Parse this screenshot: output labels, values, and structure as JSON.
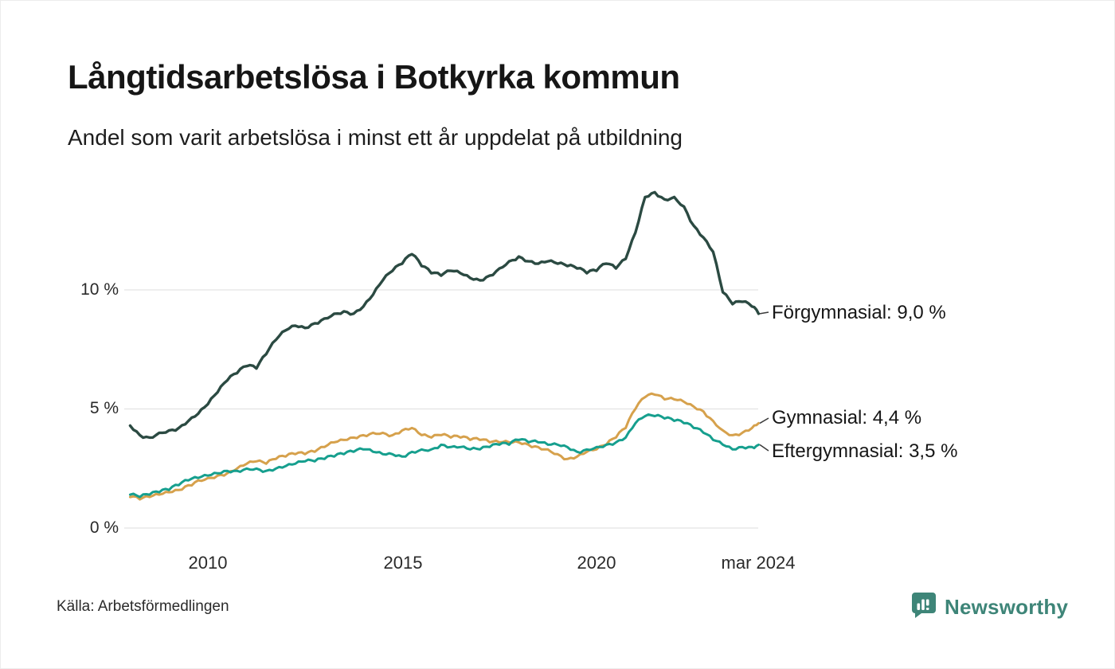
{
  "page": {
    "title": "Långtidsarbetslösa i Botkyrka kommun",
    "subtitle": "Andel som varit arbetslösa i minst ett år uppdelat på utbildning",
    "source": "Källa: Arbetsförmedlingen",
    "brand": {
      "name": "Newsworthy",
      "color": "#3E8578",
      "icon": "bar-chart-logo-icon"
    }
  },
  "chart_data": {
    "type": "line",
    "title": "Långtidsarbetslösa i Botkyrka kommun",
    "subtitle": "Andel som varit arbetslösa i minst ett år uppdelat på utbildning",
    "grid": "horizontal",
    "legend": "end-labels",
    "x_range": [
      2008.0,
      2024.2
    ],
    "y_range": [
      0,
      14.6
    ],
    "y_unit": "%",
    "y_ticks": [
      {
        "value": 10,
        "label": "10 %"
      },
      {
        "value": 5,
        "label": "5 %"
      },
      {
        "value": 0,
        "label": "0 %"
      }
    ],
    "x_ticks": [
      {
        "value": 2010,
        "label": "2010"
      },
      {
        "value": 2015,
        "label": "2015"
      },
      {
        "value": 2020,
        "label": "2020"
      },
      {
        "value": 2024.17,
        "label": "mar 2024"
      }
    ],
    "x": [
      2008.0,
      2008.25,
      2008.5,
      2008.75,
      2009.0,
      2009.25,
      2009.5,
      2009.75,
      2010.0,
      2010.25,
      2010.5,
      2010.75,
      2011.0,
      2011.25,
      2011.5,
      2011.75,
      2012.0,
      2012.25,
      2012.5,
      2012.75,
      2013.0,
      2013.25,
      2013.5,
      2013.75,
      2014.0,
      2014.25,
      2014.5,
      2014.75,
      2015.0,
      2015.25,
      2015.5,
      2015.75,
      2016.0,
      2016.25,
      2016.5,
      2016.75,
      2017.0,
      2017.25,
      2017.5,
      2017.75,
      2018.0,
      2018.25,
      2018.5,
      2018.75,
      2019.0,
      2019.25,
      2019.5,
      2019.75,
      2020.0,
      2020.25,
      2020.5,
      2020.75,
      2021.0,
      2021.25,
      2021.5,
      2021.75,
      2022.0,
      2022.25,
      2022.5,
      2022.75,
      2023.0,
      2023.25,
      2023.5,
      2023.75,
      2024.0,
      2024.17
    ],
    "series": [
      {
        "name": "Förgymnasial",
        "end_label": "Förgymnasial: 9,0 %",
        "latest": "9,0 %",
        "color": "#2B4A42",
        "values": [
          4.3,
          3.9,
          3.8,
          4.0,
          4.1,
          4.2,
          4.5,
          4.8,
          5.2,
          5.7,
          6.2,
          6.5,
          6.8,
          6.7,
          7.3,
          7.9,
          8.3,
          8.5,
          8.4,
          8.6,
          8.8,
          9.0,
          9.1,
          9.0,
          9.3,
          9.8,
          10.4,
          10.8,
          11.1,
          11.5,
          11.0,
          10.7,
          10.6,
          10.8,
          10.7,
          10.5,
          10.4,
          10.6,
          10.9,
          11.2,
          11.4,
          11.2,
          11.1,
          11.2,
          11.1,
          11.0,
          10.9,
          10.7,
          10.8,
          11.1,
          10.9,
          11.3,
          12.4,
          13.9,
          14.1,
          13.8,
          13.9,
          13.5,
          12.7,
          12.2,
          11.6,
          9.9,
          9.4,
          9.5,
          9.3,
          9.0
        ]
      },
      {
        "name": "Gymnasial",
        "end_label": "Gymnasial: 4,4 %",
        "latest": "4,4 %",
        "color": "#D6A14C",
        "values": [
          1.3,
          1.2,
          1.3,
          1.4,
          1.5,
          1.6,
          1.8,
          2.0,
          2.1,
          2.2,
          2.3,
          2.5,
          2.7,
          2.8,
          2.7,
          2.9,
          3.0,
          3.1,
          3.1,
          3.2,
          3.4,
          3.6,
          3.7,
          3.8,
          3.9,
          4.0,
          4.0,
          3.9,
          4.1,
          4.2,
          3.9,
          3.8,
          3.9,
          3.8,
          3.8,
          3.7,
          3.7,
          3.6,
          3.6,
          3.6,
          3.6,
          3.5,
          3.4,
          3.3,
          3.1,
          2.9,
          3.0,
          3.2,
          3.3,
          3.5,
          3.8,
          4.2,
          5.0,
          5.5,
          5.6,
          5.4,
          5.4,
          5.3,
          5.1,
          4.9,
          4.5,
          4.1,
          3.9,
          4.0,
          4.2,
          4.4
        ]
      },
      {
        "name": "Eftergymnasial",
        "end_label": "Eftergymnasial: 3,5 %",
        "latest": "3,5 %",
        "color": "#169F8E",
        "values": [
          1.4,
          1.3,
          1.4,
          1.5,
          1.6,
          1.8,
          2.0,
          2.1,
          2.2,
          2.3,
          2.4,
          2.4,
          2.5,
          2.5,
          2.4,
          2.5,
          2.6,
          2.7,
          2.8,
          2.8,
          2.9,
          3.0,
          3.1,
          3.2,
          3.3,
          3.2,
          3.1,
          3.1,
          3.0,
          3.2,
          3.3,
          3.3,
          3.5,
          3.4,
          3.4,
          3.3,
          3.3,
          3.4,
          3.5,
          3.5,
          3.7,
          3.6,
          3.6,
          3.5,
          3.5,
          3.4,
          3.2,
          3.3,
          3.4,
          3.5,
          3.6,
          3.8,
          4.4,
          4.7,
          4.7,
          4.6,
          4.5,
          4.4,
          4.2,
          4.0,
          3.7,
          3.5,
          3.3,
          3.4,
          3.4,
          3.5
        ]
      }
    ],
    "source": "Källa: Arbetsförmedlingen"
  }
}
